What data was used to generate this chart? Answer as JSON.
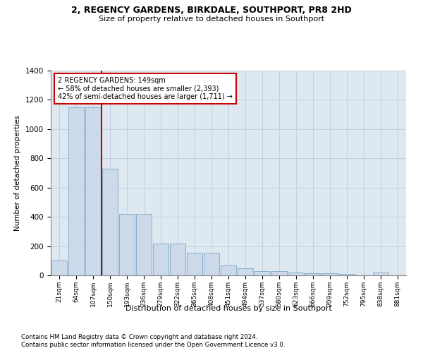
{
  "title1": "2, REGENCY GARDENS, BIRKDALE, SOUTHPORT, PR8 2HD",
  "title2": "Size of property relative to detached houses in Southport",
  "xlabel": "Distribution of detached houses by size in Southport",
  "ylabel": "Number of detached properties",
  "footnote1": "Contains HM Land Registry data © Crown copyright and database right 2024.",
  "footnote2": "Contains public sector information licensed under the Open Government Licence v3.0.",
  "categories": [
    "21sqm",
    "64sqm",
    "107sqm",
    "150sqm",
    "193sqm",
    "236sqm",
    "279sqm",
    "322sqm",
    "365sqm",
    "408sqm",
    "451sqm",
    "494sqm",
    "537sqm",
    "580sqm",
    "623sqm",
    "666sqm",
    "709sqm",
    "752sqm",
    "795sqm",
    "838sqm",
    "881sqm"
  ],
  "values": [
    100,
    1150,
    1150,
    730,
    420,
    420,
    215,
    215,
    155,
    155,
    70,
    48,
    30,
    30,
    18,
    15,
    15,
    10,
    0,
    18,
    0
  ],
  "bar_color": "#ccd9e8",
  "bar_edge_color": "#7aaac8",
  "property_line_color": "#cc0000",
  "annotation_text": "2 REGENCY GARDENS: 149sqm\n← 58% of detached houses are smaller (2,393)\n42% of semi-detached houses are larger (1,711) →",
  "annotation_box_color": "#ffffff",
  "annotation_box_edge": "#cc0000",
  "ylim": [
    0,
    1400
  ],
  "yticks": [
    0,
    200,
    400,
    600,
    800,
    1000,
    1200,
    1400
  ],
  "background_color": "#ffffff",
  "plot_bg_color": "#dde8f0",
  "grid_color": "#c0ccd8"
}
